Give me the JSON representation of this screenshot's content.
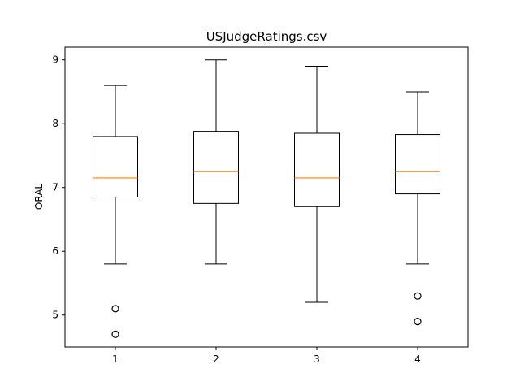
{
  "chart_data": {
    "type": "box",
    "title": "USJudgeRatings.csv",
    "xlabel": "",
    "ylabel": "ORAL",
    "categories": [
      "1",
      "2",
      "3",
      "4"
    ],
    "ylim": [
      4.5,
      9.2
    ],
    "yticks": [
      5,
      6,
      7,
      8,
      9
    ],
    "grid": false,
    "colors": {
      "box": "#000000",
      "median": "#ff7f0e",
      "background": "#ffffff"
    },
    "boxes": [
      {
        "category": "1",
        "whisker_low": 5.8,
        "q1": 6.85,
        "median": 7.15,
        "q3": 7.8,
        "whisker_high": 8.6,
        "fliers": [
          5.1,
          4.7
        ]
      },
      {
        "category": "2",
        "whisker_low": 5.8,
        "q1": 6.75,
        "median": 7.25,
        "q3": 7.88,
        "whisker_high": 9.0,
        "fliers": []
      },
      {
        "category": "3",
        "whisker_low": 5.2,
        "q1": 6.7,
        "median": 7.15,
        "q3": 7.85,
        "whisker_high": 8.9,
        "fliers": []
      },
      {
        "category": "4",
        "whisker_low": 5.8,
        "q1": 6.9,
        "median": 7.25,
        "q3": 7.83,
        "whisker_high": 8.5,
        "fliers": [
          5.3,
          4.9
        ]
      }
    ]
  }
}
